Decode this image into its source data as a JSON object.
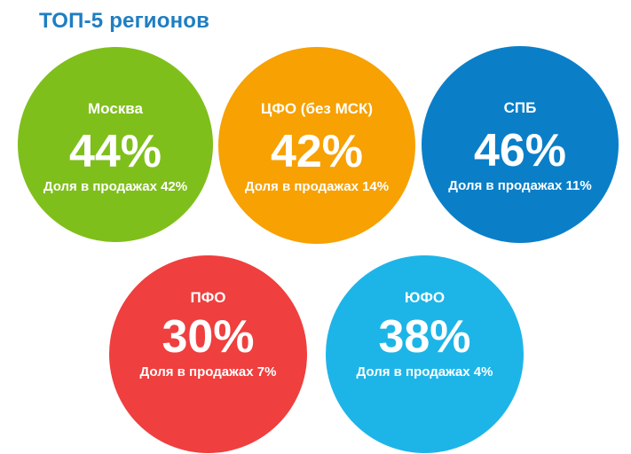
{
  "title": "ТОП-5 регионов",
  "colors": {
    "title": "#1f7ec1",
    "text": "#ffffff"
  },
  "regions": [
    {
      "name": "Москва",
      "percent": "44%",
      "share": "Доля в продажах 42%",
      "color": "#7fbf1b"
    },
    {
      "name": "ЦФО (без МСК)",
      "percent": "42%",
      "share": "Доля в продажах 14%",
      "color": "#f7a102"
    },
    {
      "name": "СПБ",
      "percent": "46%",
      "share": "Доля в продажах 11%",
      "color": "#0a7fc8"
    },
    {
      "name": "ПФО",
      "percent": "30%",
      "share": "Доля в продажах 7%",
      "color": "#ef3f3e"
    },
    {
      "name": "ЮФО",
      "percent": "38%",
      "share": "Доля в продажах 4%",
      "color": "#1db5e8"
    }
  ]
}
